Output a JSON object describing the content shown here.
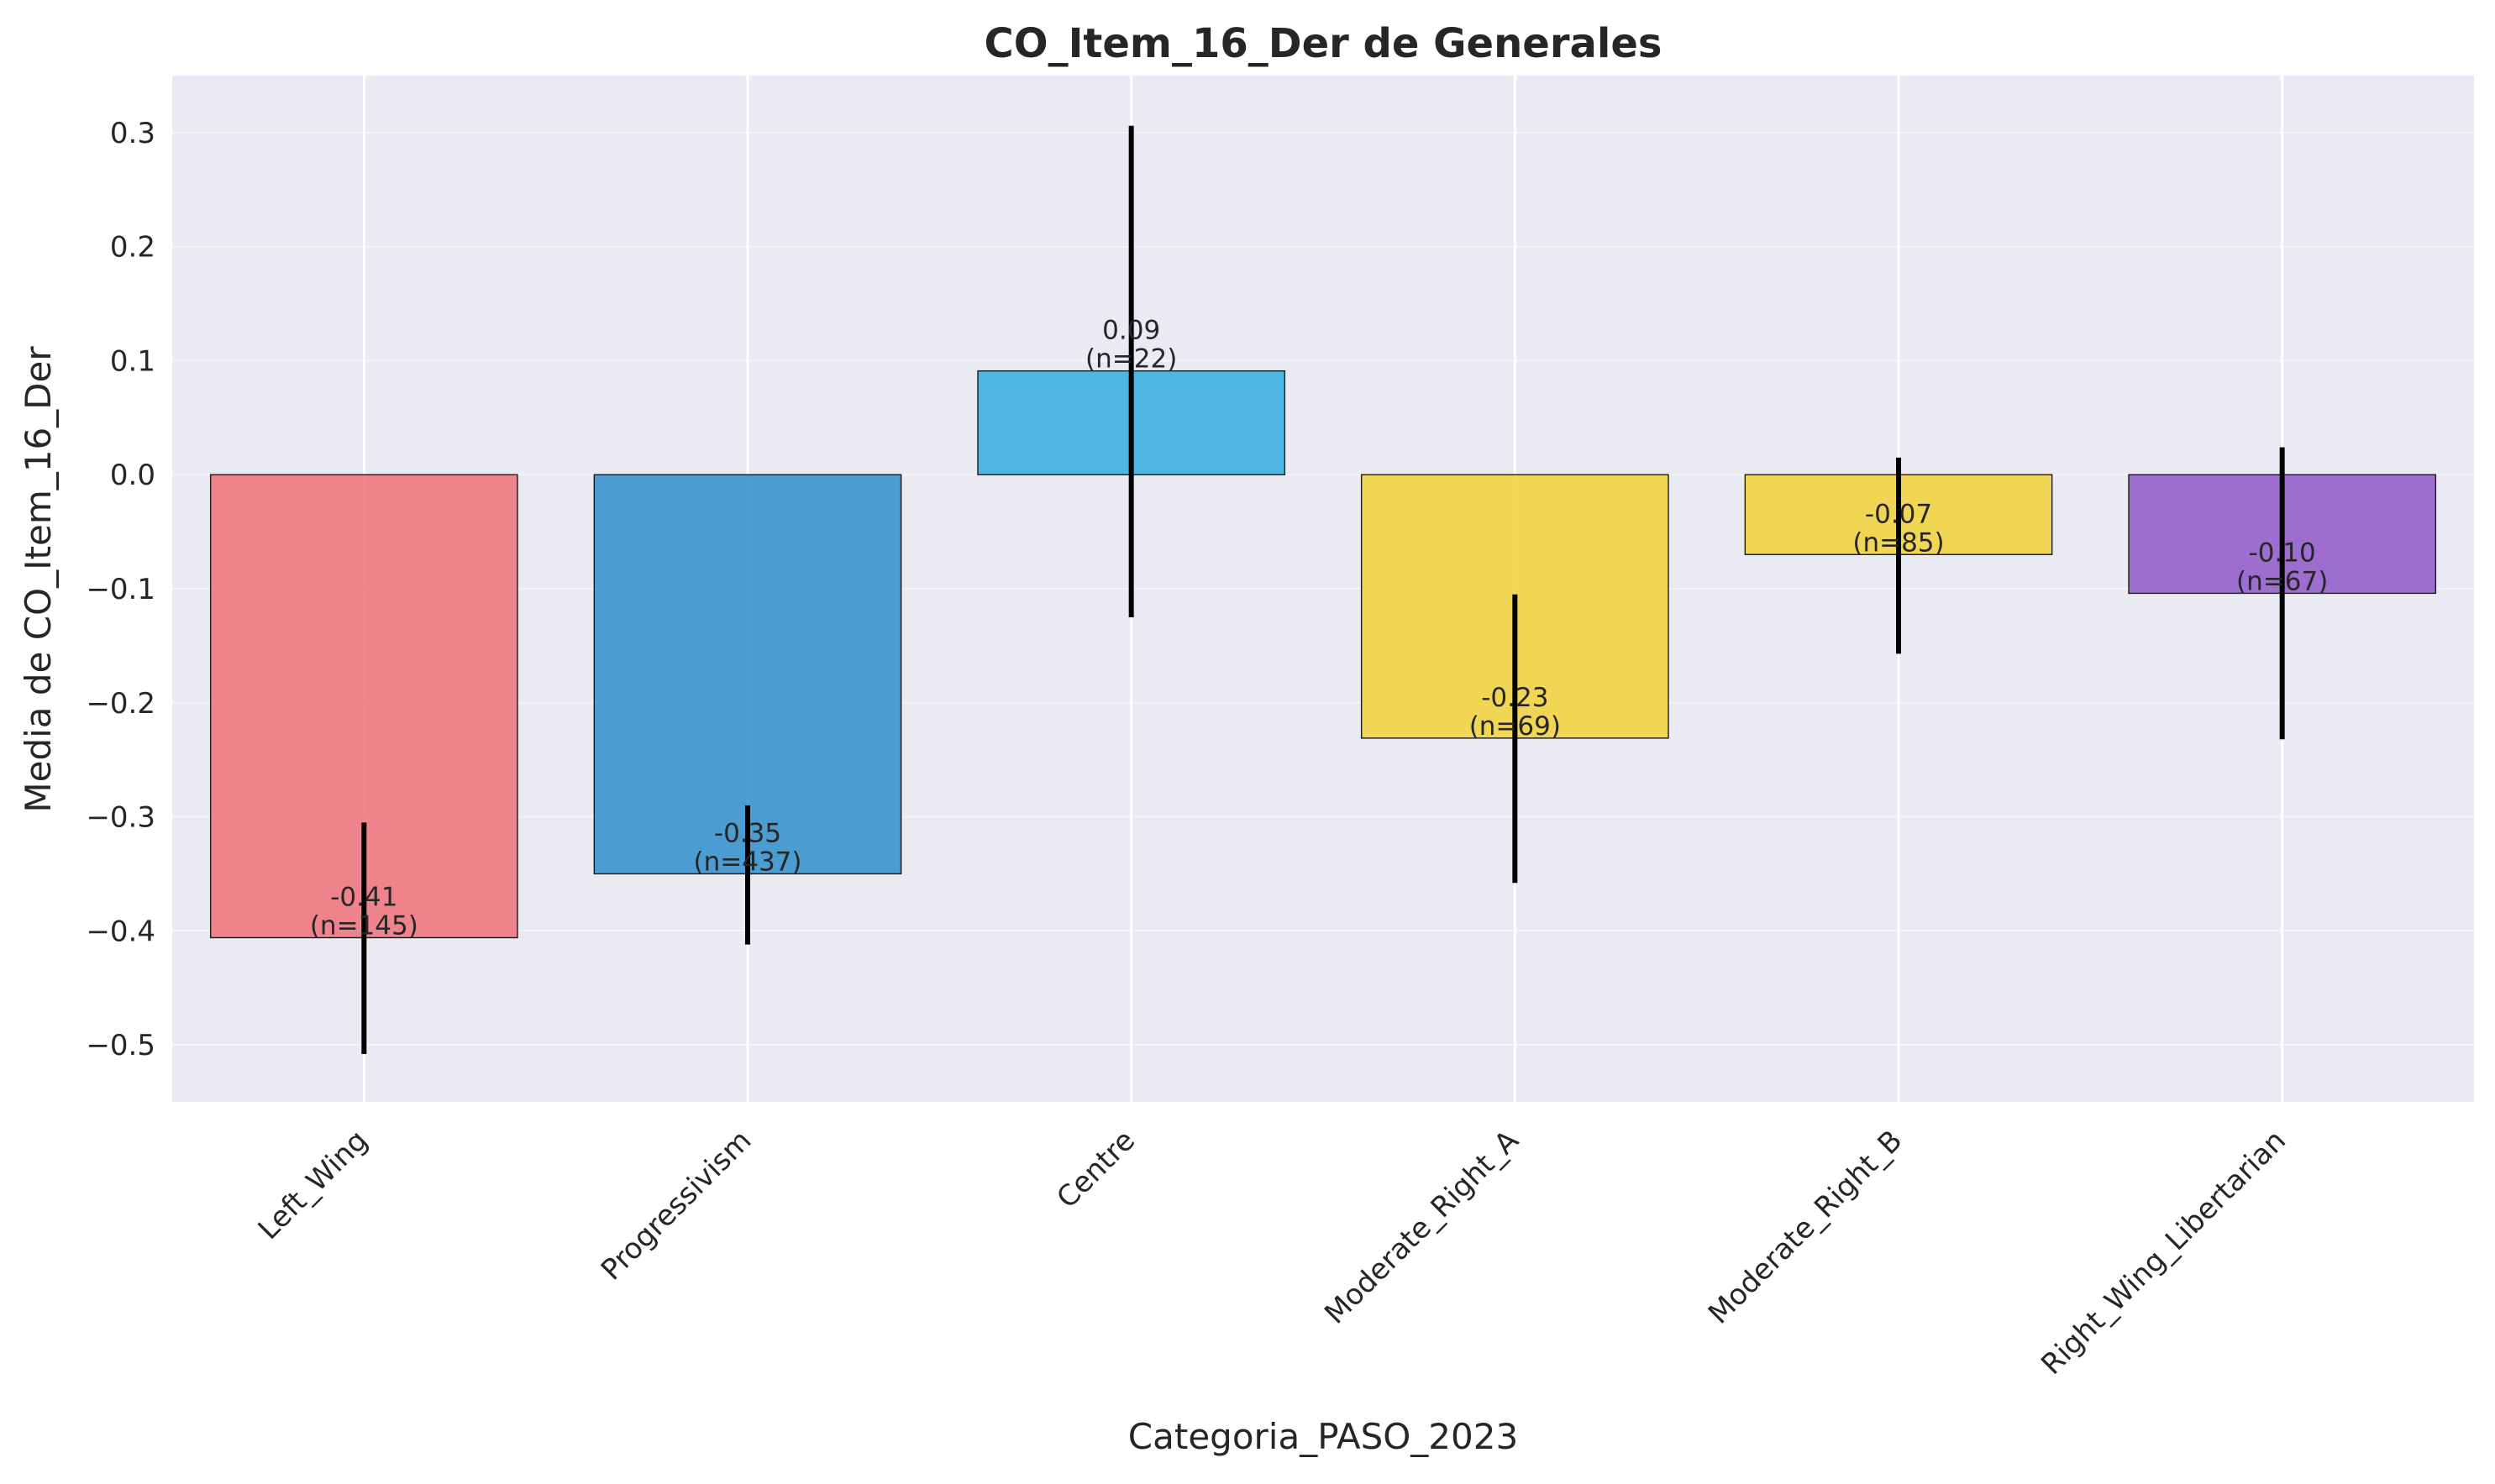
{
  "chart_data": {
    "type": "bar",
    "title": "CO_Item_16_Der de Generales",
    "xlabel": "Categoria_PASO_2023",
    "ylabel": "Media de CO_Item_16_Der",
    "categories": [
      "Left_Wing",
      "Progressivism",
      "Centre",
      "Moderate_Right_A",
      "Moderate_Right_B",
      "Right_Wing_Libertarian"
    ],
    "values": [
      -0.406,
      -0.35,
      0.091,
      -0.231,
      -0.07,
      -0.104
    ],
    "error_low": [
      -0.508,
      -0.412,
      -0.125,
      -0.358,
      -0.157,
      -0.232
    ],
    "error_high": [
      -0.305,
      -0.29,
      0.306,
      -0.105,
      0.015,
      0.024
    ],
    "value_labels": [
      "-0.41",
      "-0.35",
      "0.09",
      "-0.23",
      "-0.07",
      "-0.10"
    ],
    "n_labels": [
      "(n=145)",
      "(n=437)",
      "(n=22)",
      "(n=69)",
      "(n=85)",
      "(n=67)"
    ],
    "colors": [
      "#f07880",
      "#3a94cc",
      "#3cb0e0",
      "#f2d445",
      "#f2d445",
      "#955fcc"
    ],
    "ylim": [
      -0.55,
      0.35
    ],
    "yticks": [
      -0.5,
      -0.4,
      -0.3,
      -0.2,
      -0.1,
      0.0,
      0.1,
      0.2,
      0.3
    ],
    "ytick_labels": [
      "−0.5",
      "−0.4",
      "−0.3",
      "−0.2",
      "−0.1",
      "0.0",
      "0.1",
      "0.2",
      "0.3"
    ],
    "grid": true,
    "background": "#eaeaf2"
  }
}
